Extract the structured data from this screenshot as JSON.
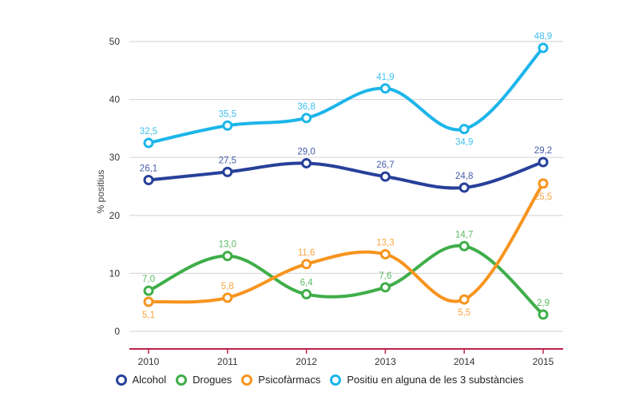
{
  "chart_data": {
    "type": "line",
    "title": "",
    "xlabel": "",
    "ylabel": "% positius",
    "x": [
      "2010",
      "2011",
      "2012",
      "2013",
      "2014",
      "2015"
    ],
    "ylim": [
      0,
      50
    ],
    "yticks": [
      0,
      10,
      20,
      30,
      40,
      50
    ],
    "grid": true,
    "legend_position": "bottom",
    "series": [
      {
        "name": "Alcohol",
        "color": "#27409a",
        "values": [
          26.1,
          27.5,
          29.0,
          26.7,
          24.8,
          29.2
        ],
        "labels": [
          "26,1",
          "27,5",
          "29,0",
          "26,7",
          "24,8",
          "29,2"
        ],
        "label_pos": [
          "above",
          "above",
          "above",
          "above",
          "above",
          "above"
        ]
      },
      {
        "name": "Drogues",
        "color": "#3fae49",
        "values": [
          7.0,
          13.0,
          6.4,
          7.6,
          14.7,
          2.9
        ],
        "labels": [
          "7,0",
          "13,0",
          "6,4",
          "7,6",
          "14,7",
          "2,9"
        ],
        "label_pos": [
          "above",
          "above",
          "above",
          "above",
          "above",
          "above"
        ]
      },
      {
        "name": "Psicofàrmacs",
        "color": "#f7941e",
        "values": [
          5.1,
          5.8,
          11.6,
          13.3,
          5.5,
          25.5
        ],
        "labels": [
          "5,1",
          "5,8",
          "11,6",
          "13,3",
          "5,5",
          "25,5"
        ],
        "label_pos": [
          "below",
          "above",
          "above",
          "above",
          "below",
          "below"
        ]
      },
      {
        "name": "Positiu en alguna de les 3 substàncies",
        "color": "#1cb5ea",
        "values": [
          32.5,
          35.5,
          36.8,
          41.9,
          34.9,
          48.9
        ],
        "labels": [
          "32,5",
          "35,5",
          "36,8",
          "41,9",
          "34,9",
          "48,9"
        ],
        "label_pos": [
          "above",
          "above",
          "above",
          "above",
          "below",
          "above"
        ]
      }
    ]
  },
  "legend": {
    "items": [
      {
        "label": "Alcohol",
        "color": "#27409a"
      },
      {
        "label": "Drogues",
        "color": "#3fae49"
      },
      {
        "label": "Psicofàrmacs",
        "color": "#f7941e"
      },
      {
        "label": "Positiu en alguna de les 3 substàncies",
        "color": "#1cb5ea"
      }
    ]
  },
  "colors": {
    "axis_line": "#c0224a",
    "grid": "#d9d9d9"
  }
}
